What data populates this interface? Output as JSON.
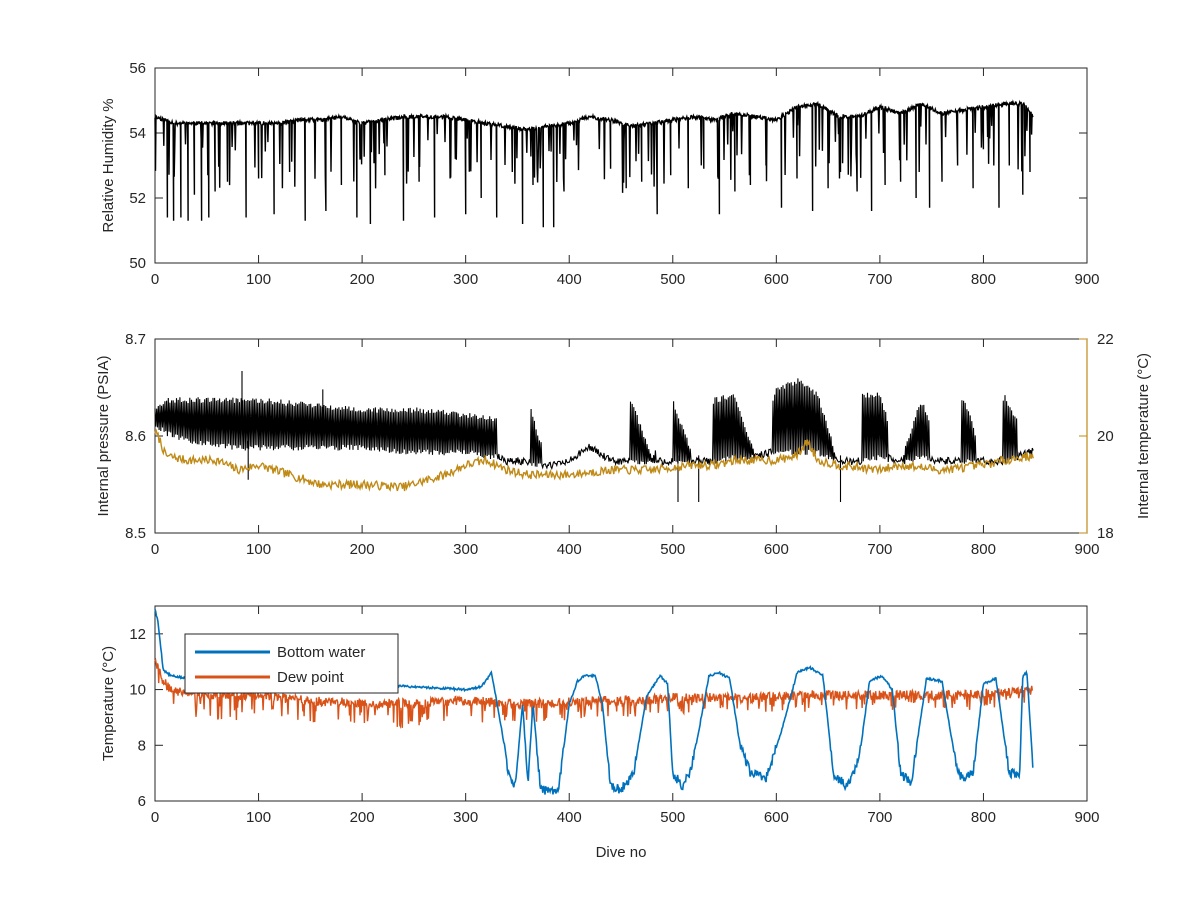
{
  "chart_data": [
    {
      "type": "line",
      "title": "",
      "xlabel": "",
      "ylabel": "Relative Humidity %",
      "xlim": [
        0,
        900
      ],
      "ylim": [
        50,
        56
      ],
      "xticks": [
        "0",
        "100",
        "200",
        "300",
        "400",
        "500",
        "600",
        "700",
        "800",
        "900"
      ],
      "yticks": [
        "50",
        "52",
        "54",
        "56"
      ],
      "series": [
        {
          "color": "#000000",
          "description": "Baseline ~54.3-54.9 % with frequent downward spikes to ~51-53 %",
          "x": [
            0,
            10,
            20,
            40,
            60,
            80,
            100,
            120,
            140,
            160,
            180,
            200,
            220,
            240,
            260,
            280,
            300,
            320,
            340,
            360,
            380,
            400,
            420,
            440,
            460,
            480,
            500,
            520,
            540,
            560,
            580,
            600,
            620,
            640,
            660,
            680,
            700,
            720,
            740,
            760,
            780,
            800,
            820,
            840,
            848
          ],
          "y": [
            54.5,
            54.4,
            54.3,
            54.3,
            54.3,
            54.3,
            54.3,
            54.3,
            54.4,
            54.4,
            54.5,
            54.3,
            54.4,
            54.5,
            54.5,
            54.5,
            54.4,
            54.3,
            54.2,
            54.1,
            54.2,
            54.3,
            54.5,
            54.4,
            54.2,
            54.3,
            54.4,
            54.5,
            54.4,
            54.6,
            54.5,
            54.4,
            54.8,
            54.9,
            54.5,
            54.5,
            54.8,
            54.6,
            54.9,
            54.6,
            54.7,
            54.8,
            54.9,
            54.9,
            54.5
          ],
          "spikes": [
            {
              "x": 12,
              "y": 51.4
            },
            {
              "x": 18,
              "y": 51.3
            },
            {
              "x": 25,
              "y": 51.4
            },
            {
              "x": 32,
              "y": 51.3
            },
            {
              "x": 38,
              "y": 52.1
            },
            {
              "x": 45,
              "y": 51.3
            },
            {
              "x": 52,
              "y": 51.4
            },
            {
              "x": 58,
              "y": 52.2
            },
            {
              "x": 70,
              "y": 52.5
            },
            {
              "x": 88,
              "y": 51.4
            },
            {
              "x": 100,
              "y": 52.6
            },
            {
              "x": 115,
              "y": 51.5
            },
            {
              "x": 130,
              "y": 52.8
            },
            {
              "x": 145,
              "y": 51.3
            },
            {
              "x": 165,
              "y": 51.6
            },
            {
              "x": 180,
              "y": 52.4
            },
            {
              "x": 195,
              "y": 51.4
            },
            {
              "x": 208,
              "y": 51.2
            },
            {
              "x": 222,
              "y": 52.7
            },
            {
              "x": 240,
              "y": 51.3
            },
            {
              "x": 255,
              "y": 52.5
            },
            {
              "x": 270,
              "y": 51.4
            },
            {
              "x": 285,
              "y": 52.6
            },
            {
              "x": 300,
              "y": 51.5
            },
            {
              "x": 315,
              "y": 52.0
            },
            {
              "x": 330,
              "y": 51.4
            },
            {
              "x": 345,
              "y": 52.8
            },
            {
              "x": 355,
              "y": 51.2
            },
            {
              "x": 365,
              "y": 52.4
            },
            {
              "x": 375,
              "y": 51.1
            },
            {
              "x": 385,
              "y": 51.1
            },
            {
              "x": 395,
              "y": 52.2
            },
            {
              "x": 440,
              "y": 52.9
            },
            {
              "x": 455,
              "y": 52.3
            },
            {
              "x": 470,
              "y": 52.5
            },
            {
              "x": 485,
              "y": 51.5
            },
            {
              "x": 498,
              "y": 52.7
            },
            {
              "x": 515,
              "y": 52.3
            },
            {
              "x": 530,
              "y": 52.9
            },
            {
              "x": 545,
              "y": 51.5
            },
            {
              "x": 560,
              "y": 52.2
            },
            {
              "x": 575,
              "y": 52.4
            },
            {
              "x": 590,
              "y": 53.0
            },
            {
              "x": 605,
              "y": 51.7
            },
            {
              "x": 620,
              "y": 52.6
            },
            {
              "x": 635,
              "y": 51.6
            },
            {
              "x": 650,
              "y": 52.3
            },
            {
              "x": 662,
              "y": 52.8
            },
            {
              "x": 678,
              "y": 52.2
            },
            {
              "x": 692,
              "y": 51.6
            },
            {
              "x": 705,
              "y": 52.4
            },
            {
              "x": 720,
              "y": 52.5
            },
            {
              "x": 735,
              "y": 52.0
            },
            {
              "x": 748,
              "y": 51.7
            },
            {
              "x": 760,
              "y": 52.5
            },
            {
              "x": 775,
              "y": 53.0
            },
            {
              "x": 790,
              "y": 52.3
            },
            {
              "x": 800,
              "y": 53.5
            },
            {
              "x": 815,
              "y": 51.7
            },
            {
              "x": 825,
              "y": 53.0
            },
            {
              "x": 838,
              "y": 52.1
            },
            {
              "x": 845,
              "y": 52.8
            }
          ]
        }
      ]
    },
    {
      "type": "line",
      "title": "",
      "xlabel": "",
      "ylabel": "Internal pressure (PSIA)",
      "ylabel_right": "Internal temperature (°C)",
      "xlim": [
        0,
        900
      ],
      "ylim": [
        8.5,
        8.7
      ],
      "ylim_right": [
        18,
        22
      ],
      "xticks": [
        "0",
        "100",
        "200",
        "300",
        "400",
        "500",
        "600",
        "700",
        "800",
        "900"
      ],
      "yticks": [
        "8.5",
        "8.6",
        "8.7"
      ],
      "yticks_right": [
        "18",
        "20",
        "22"
      ],
      "series": [
        {
          "axis": "left",
          "color": "#000000",
          "description": "Internal pressure; dense oscillation band then periodic bursts",
          "x": [
            0,
            10,
            40,
            80,
            100,
            150,
            200,
            250,
            300,
            330,
            340,
            360,
            380,
            400,
            420,
            440,
            460,
            480,
            500,
            520,
            540,
            560,
            580,
            600,
            620,
            640,
            660,
            680,
            700,
            720,
            740,
            760,
            780,
            800,
            820,
            848
          ],
          "y_low": [
            8.61,
            8.6,
            8.59,
            8.585,
            8.585,
            8.585,
            8.585,
            8.58,
            8.58,
            8.575,
            8.57,
            8.57,
            8.565,
            8.57,
            8.585,
            8.57,
            8.57,
            8.57,
            8.57,
            8.57,
            8.57,
            8.575,
            8.575,
            8.58,
            8.58,
            8.58,
            8.57,
            8.57,
            8.575,
            8.57,
            8.575,
            8.57,
            8.57,
            8.57,
            8.57,
            8.58
          ],
          "y_high": [
            8.63,
            8.64,
            8.64,
            8.64,
            8.64,
            8.635,
            8.63,
            8.63,
            8.625,
            8.62,
            8.575,
            8.64,
            8.57,
            8.575,
            8.59,
            8.575,
            8.64,
            8.58,
            8.64,
            8.58,
            8.64,
            8.645,
            8.58,
            8.65,
            8.66,
            8.645,
            8.575,
            8.645,
            8.645,
            8.575,
            8.64,
            8.575,
            8.645,
            8.58,
            8.645,
            8.585
          ],
          "bursts": [
            [
              362,
              374
            ],
            [
              458,
              484
            ],
            [
              500,
              518
            ],
            [
              538,
              578
            ],
            [
              596,
              660
            ],
            [
              682,
              708
            ],
            [
              722,
              748
            ],
            [
              778,
              792
            ],
            [
              818,
              832
            ]
          ],
          "spikes": [
            {
              "x": 84,
              "y": 8.667
            },
            {
              "x": 90,
              "y": 8.555
            },
            {
              "x": 162,
              "y": 8.648
            },
            {
              "x": 505,
              "y": 8.532
            },
            {
              "x": 525,
              "y": 8.532
            },
            {
              "x": 662,
              "y": 8.532
            }
          ]
        },
        {
          "axis": "right",
          "color": "#C08A17",
          "description": "Internal temperature",
          "x": [
            0,
            5,
            10,
            30,
            60,
            80,
            100,
            130,
            160,
            200,
            240,
            280,
            300,
            320,
            340,
            360,
            400,
            440,
            480,
            520,
            540,
            560,
            600,
            620,
            630,
            640,
            660,
            700,
            720,
            760,
            800,
            820,
            848
          ],
          "y": [
            20.1,
            19.9,
            19.6,
            19.5,
            19.5,
            19.3,
            19.4,
            19.2,
            19.0,
            19.0,
            18.95,
            19.2,
            19.4,
            19.5,
            19.3,
            19.2,
            19.2,
            19.3,
            19.3,
            19.4,
            19.4,
            19.5,
            19.5,
            19.6,
            19.9,
            19.5,
            19.4,
            19.3,
            19.4,
            19.3,
            19.4,
            19.5,
            19.6
          ]
        }
      ]
    },
    {
      "type": "line",
      "title": "",
      "xlabel": "Dive no",
      "ylabel": "Temperature (°C)",
      "xlim": [
        0,
        900
      ],
      "ylim": [
        6,
        13
      ],
      "xticks": [
        "0",
        "100",
        "200",
        "300",
        "400",
        "500",
        "600",
        "700",
        "800",
        "900"
      ],
      "yticks": [
        "6",
        "8",
        "10",
        "12"
      ],
      "legend": {
        "position": "top-left"
      },
      "series": [
        {
          "name": "Bottom water",
          "color": "#0072BD",
          "x": [
            0,
            3,
            8,
            15,
            30,
            60,
            100,
            150,
            200,
            250,
            300,
            315,
            325,
            335,
            342,
            348,
            355,
            360,
            365,
            372,
            380,
            390,
            400,
            408,
            415,
            425,
            432,
            440,
            450,
            462,
            475,
            488,
            495,
            500,
            510,
            518,
            525,
            535,
            545,
            555,
            565,
            575,
            590,
            605,
            620,
            632,
            645,
            655,
            668,
            680,
            690,
            702,
            712,
            720,
            730,
            745,
            760,
            775,
            780,
            790,
            800,
            812,
            825,
            835,
            838,
            842,
            848
          ],
          "y": [
            12.9,
            12.4,
            10.7,
            10.5,
            10.4,
            10.4,
            10.4,
            10.3,
            10.2,
            10.1,
            10.0,
            10.1,
            10.6,
            8.5,
            6.8,
            6.6,
            9.5,
            6.6,
            9.5,
            6.5,
            6.3,
            6.5,
            9.5,
            10.3,
            10.5,
            10.5,
            9.5,
            6.5,
            6.4,
            7.0,
            9.8,
            10.5,
            10.2,
            7.0,
            6.5,
            7.2,
            8.5,
            10.5,
            10.6,
            10.4,
            8.0,
            7.0,
            6.8,
            8.5,
            10.6,
            10.8,
            10.5,
            7.0,
            6.5,
            7.5,
            10.3,
            10.5,
            10.0,
            7.0,
            6.6,
            10.4,
            10.3,
            7.0,
            6.8,
            7.0,
            10.2,
            10.4,
            7.0,
            7.0,
            10.5,
            10.6,
            7.1
          ]
        },
        {
          "name": "Dew point",
          "color": "#D95319",
          "x": [
            0,
            3,
            8,
            15,
            30,
            60,
            100,
            150,
            200,
            250,
            300,
            340,
            380,
            420,
            460,
            500,
            540,
            580,
            620,
            660,
            700,
            740,
            780,
            820,
            848
          ],
          "y": [
            11.1,
            10.8,
            10.3,
            10.0,
            9.9,
            9.8,
            9.8,
            9.6,
            9.5,
            9.5,
            9.6,
            9.5,
            9.5,
            9.6,
            9.6,
            9.7,
            9.7,
            9.7,
            9.8,
            9.8,
            9.8,
            9.8,
            9.8,
            9.9,
            10.0
          ],
          "y_min": [
            10.3,
            10.0,
            9.5,
            9.0,
            9.0,
            8.9,
            8.9,
            8.8,
            8.7,
            8.6,
            8.8,
            8.8,
            8.8,
            9.0,
            9.0,
            9.1,
            9.2,
            9.2,
            9.2,
            9.2,
            9.3,
            9.2,
            9.2,
            9.3,
            9.6
          ],
          "y_max": [
            11.1,
            10.9,
            10.4,
            10.3,
            10.2,
            10.1,
            10.1,
            10.0,
            10.0,
            9.9,
            10.0,
            10.0,
            10.0,
            10.0,
            10.0,
            10.1,
            10.1,
            10.1,
            10.2,
            10.2,
            10.2,
            10.2,
            10.2,
            10.3,
            10.2
          ]
        }
      ]
    }
  ]
}
